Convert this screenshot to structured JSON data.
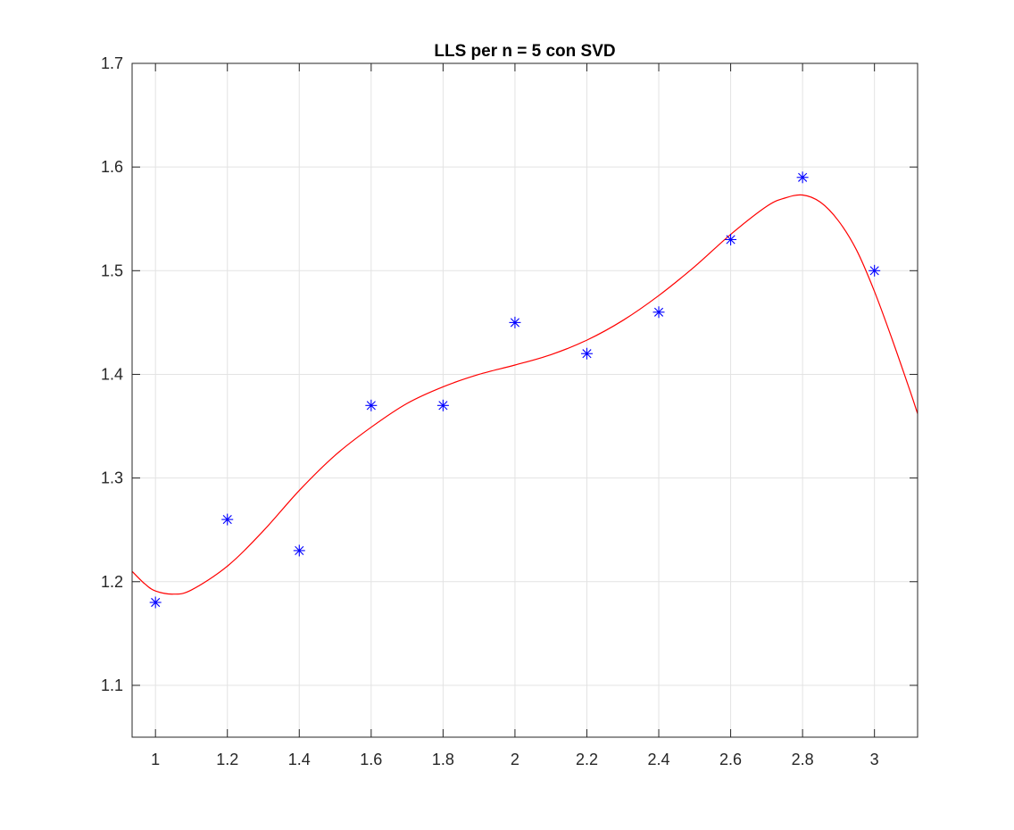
{
  "chart_data": {
    "type": "scatter",
    "title": "LLS per n = 5 con SVD",
    "xlabel": "",
    "ylabel": "",
    "xlim": [
      0.935,
      3.12
    ],
    "ylim": [
      1.05,
      1.7
    ],
    "grid": true,
    "xticks": [
      1,
      1.2,
      1.4,
      1.6,
      1.8,
      2,
      2.2,
      2.4,
      2.6,
      2.8,
      3
    ],
    "xtick_labels": [
      "1",
      "1.2",
      "1.4",
      "1.6",
      "1.8",
      "2",
      "2.2",
      "2.4",
      "2.6",
      "2.8",
      "3"
    ],
    "yticks": [
      1.1,
      1.2,
      1.3,
      1.4,
      1.5,
      1.6,
      1.7
    ],
    "ytick_labels": [
      "1.1",
      "1.2",
      "1.3",
      "1.4",
      "1.5",
      "1.6",
      "1.7"
    ],
    "series": [
      {
        "marker": "asterisk",
        "color": "#0000ff",
        "x": [
          1.0,
          1.2,
          1.4,
          1.6,
          1.8,
          2.0,
          2.2,
          2.4,
          2.6,
          2.8,
          3.0
        ],
        "y": [
          1.18,
          1.26,
          1.23,
          1.37,
          1.37,
          1.45,
          1.42,
          1.46,
          1.53,
          1.59,
          1.5
        ]
      },
      {
        "line": "solid",
        "color": "#ff0000",
        "x": [
          0.935,
          0.97,
          1.0,
          1.05,
          1.1,
          1.2,
          1.3,
          1.4,
          1.5,
          1.6,
          1.7,
          1.8,
          1.9,
          2.0,
          2.1,
          2.2,
          2.3,
          2.4,
          2.5,
          2.6,
          2.7,
          2.75,
          2.8,
          2.85,
          2.9,
          2.95,
          3.0,
          3.05,
          3.1,
          3.12
        ],
        "y": [
          1.21,
          1.198,
          1.191,
          1.188,
          1.192,
          1.215,
          1.249,
          1.288,
          1.322,
          1.349,
          1.372,
          1.388,
          1.4,
          1.409,
          1.419,
          1.433,
          1.452,
          1.476,
          1.504,
          1.535,
          1.562,
          1.57,
          1.573,
          1.566,
          1.548,
          1.52,
          1.48,
          1.433,
          1.383,
          1.362
        ]
      }
    ]
  }
}
